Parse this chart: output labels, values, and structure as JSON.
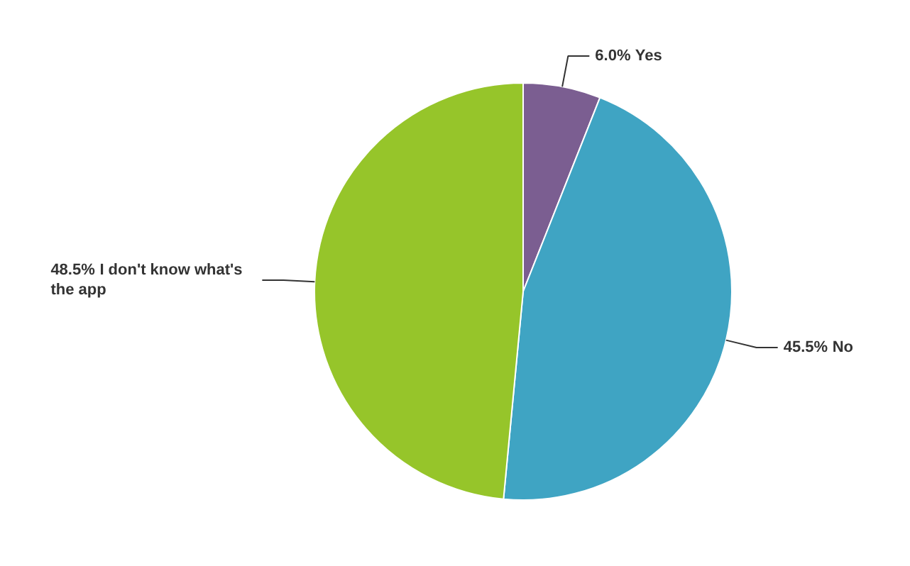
{
  "chart_data": {
    "type": "pie",
    "categories": [
      "Yes",
      "No",
      "I don't know what's the app"
    ],
    "values": [
      6.0,
      45.5,
      48.5
    ],
    "value_labels": [
      "6.0%",
      "45.5%",
      "48.5%"
    ],
    "colors": [
      "#7b5e91",
      "#3fa4c3",
      "#96c52a"
    ]
  }
}
